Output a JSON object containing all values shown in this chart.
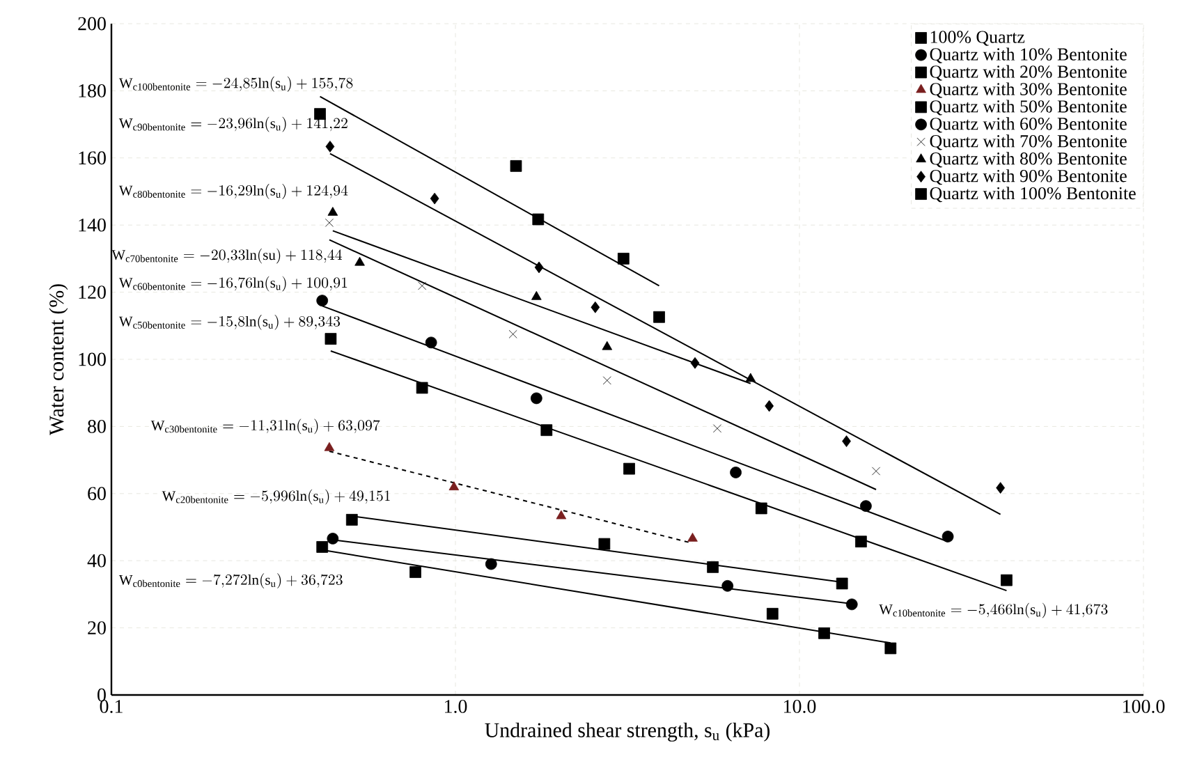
{
  "chart_data": {
    "type": "scatter",
    "xlabel": "Undrained shear strength, s$_{u}$ (kPa)",
    "ylabel": "Water content (%)",
    "log": "x",
    "xlim": [
      0.1,
      100
    ],
    "ylim": [
      0,
      200
    ],
    "xticks": [
      0.1,
      {
        "value": 1,
        "label": "1.0"
      },
      {
        "value": 10,
        "label": "10.0"
      },
      {
        "value": 100,
        "label": "100.0"
      }
    ],
    "yticks": [
      0,
      20,
      40,
      60,
      80,
      100,
      120,
      140,
      160,
      180,
      200
    ],
    "grid": true,
    "legend": "top right",
    "series": [
      {
        "name": "100% Quartz",
        "color": "#000000",
        "marker": "square",
        "x": [
          0.41,
          0.765,
          8.35,
          11.8,
          18.4
        ],
        "values": [
          44.1,
          36.6,
          24.2,
          18.4,
          13.9
        ]
      },
      {
        "name": "Quartz with 10% Bentonite",
        "color": "#000000",
        "marker": "circle",
        "x": [
          0.44,
          1.27,
          6.18,
          14.2
        ],
        "values": [
          46.6,
          39.0,
          32.5,
          27.0
        ]
      },
      {
        "name": "Quartz with 20% Bentonite",
        "color": "#000000",
        "marker": "square",
        "x": [
          0.5,
          2.71,
          5.6,
          13.3
        ],
        "values": [
          52.2,
          45.0,
          38.1,
          33.2
        ]
      },
      {
        "name": "Quartz with 30% Bentonite",
        "color": "#7a1f1f",
        "marker": "triangle",
        "x": [
          0.43,
          0.99,
          2.03,
          4.89
        ],
        "values": [
          73.6,
          61.9,
          53.3,
          46.6
        ]
      },
      {
        "name": "Quartz with 50% Bentonite",
        "color": "#000000",
        "marker": "square",
        "x": [
          0.434,
          0.8,
          1.84,
          3.2,
          7.75,
          15.1,
          40.0
        ],
        "values": [
          106.1,
          91.5,
          78.9,
          67.4,
          55.6,
          45.7,
          34.2
        ]
      },
      {
        "name": "Quartz with 60% Bentonite",
        "marker": "circle",
        "color": "#000000",
        "x": [
          0.41,
          0.85,
          1.72,
          6.53,
          15.6,
          27.0
        ],
        "values": [
          117.5,
          105.0,
          88.4,
          66.3,
          56.3,
          47.2
        ]
      },
      {
        "name": "Quartz with 70% Bentonite",
        "color": "#000000",
        "marker": "cross",
        "x": [
          0.43,
          0.8,
          1.47,
          2.76,
          5.77,
          16.7
        ],
        "values": [
          140.7,
          121.9,
          107.5,
          93.7,
          79.4,
          66.7
        ]
      },
      {
        "name": "Quartz with 80% Bentonite",
        "marker": "triangle",
        "color": "#000000",
        "x": [
          0.44,
          0.527,
          1.72,
          2.76,
          7.21
        ],
        "values": [
          143.7,
          128.8,
          118.6,
          103.7,
          94.2
        ]
      },
      {
        "name": "Quartz with 90% Bentonite",
        "marker": "diamond",
        "color": "#000000",
        "x": [
          0.432,
          0.87,
          1.75,
          2.55,
          4.97,
          8.17,
          13.7,
          38.4
        ],
        "values": [
          163.4,
          147.9,
          127.4,
          115.5,
          98.9,
          86.1,
          75.6,
          61.7
        ]
      },
      {
        "name": "Quartz with 100% Bentonite",
        "marker": "square",
        "color": "#000000",
        "x": [
          0.404,
          1.5,
          1.74,
          3.08,
          3.91
        ],
        "values": [
          173.1,
          157.6,
          141.7,
          130.0,
          112.6
        ]
      },
      {
        "type": "line",
        "color": "#000000",
        "line_style": "solid",
        "x": [
          0.41,
          18.4
        ],
        "values": [
          43.2,
          15.5
        ]
      },
      {
        "type": "line",
        "color": "#000000",
        "line_style": "solid",
        "x": [
          0.44,
          14.2
        ],
        "values": [
          46.2,
          27.2
        ]
      },
      {
        "type": "line",
        "color": "#000000",
        "line_style": "solid",
        "x": [
          0.5,
          13.3
        ],
        "values": [
          53.3,
          33.6
        ]
      },
      {
        "type": "line",
        "color": "#000000",
        "line_style": "dashed",
        "x": [
          0.43,
          4.89
        ],
        "values": [
          72.6,
          45.2
        ]
      },
      {
        "type": "line",
        "color": "#000000",
        "line_style": "solid",
        "x": [
          0.434,
          40.0
        ],
        "values": [
          102.5,
          31.1
        ]
      },
      {
        "type": "line",
        "color": "#000000",
        "line_style": "solid",
        "x": [
          0.41,
          27.0
        ],
        "values": [
          115.9,
          45.7
        ]
      },
      {
        "type": "line",
        "color": "#000000",
        "line_style": "solid",
        "x": [
          0.43,
          16.7
        ],
        "values": [
          135.6,
          61.2
        ]
      },
      {
        "type": "line",
        "color": "#000000",
        "line_style": "solid",
        "x": [
          0.44,
          7.21
        ],
        "values": [
          138.3,
          92.8
        ]
      },
      {
        "type": "line",
        "color": "#000000",
        "line_style": "solid",
        "x": [
          0.432,
          38.4
        ],
        "values": [
          161.3,
          53.8
        ]
      },
      {
        "type": "line",
        "color": "#000000",
        "line_style": "solid",
        "x": [
          0.404,
          3.91
        ],
        "values": [
          178.3,
          121.9
        ]
      }
    ],
    "annotations": [
      "\\mathrm{W}_{\\mathrm{c100bentonite}} = -24{,}85\\mathrm{ln}(\\mathrm{s}_{\\mathrm{u}}) + 155{,}78",
      "\\mathrm{W}_{\\mathrm{c90bentonite}} = -23{,}96\\mathrm{ln}(\\mathrm{s}_{\\mathrm{u}}) + 141{,}22",
      "\\mathrm{W}_{\\mathrm{c80bentonite}} = -16{,}29\\mathrm{ln}(\\mathrm{s}_{\\mathrm{u}}) + 124{,}94",
      "\\mathrm{W}_{\\mathrm{c70bentonite}} = -20{,}33\\mathrm{ln}(\\mathrm{su}) + 118{,}44",
      "\\mathrm{W}_{\\mathrm{c60bentonite}}= -16{,}76\\mathrm{ln}(\\mathrm{s}_{\\mathrm{u}}) + 100{,}91",
      "\\mathrm{W}_{\\mathrm{c50bentonite}} = -15{,}8\\mathrm{ln}(\\mathrm{s}_{\\mathrm{u}}) + 89{,}343",
      "\\mathrm{W}_{\\mathrm{c30bentonite}} = -11{,}31\\mathrm{ln}(\\mathrm{s}_{\\mathrm{u}}) + 63{,}097",
      "\\mathrm{W}_{\\mathrm{c20bentonite}} = -5{,}996\\mathrm{ln}(\\mathrm{s}_{\\mathrm{u}}) + 49{,}151",
      "\\mathrm{W}_{\\mathrm{c0bentonite}} = -7{,}272\\mathrm{ln}(\\mathrm{s}_{\\mathrm{u}}) + 36{,}723",
      "\\mathrm{W}_{\\mathrm{c10bentonite}} = -5{,}466\\mathrm{ln}(\\mathrm{s}_{\\mathrm{u}}) + 41{,}673"
    ]
  }
}
